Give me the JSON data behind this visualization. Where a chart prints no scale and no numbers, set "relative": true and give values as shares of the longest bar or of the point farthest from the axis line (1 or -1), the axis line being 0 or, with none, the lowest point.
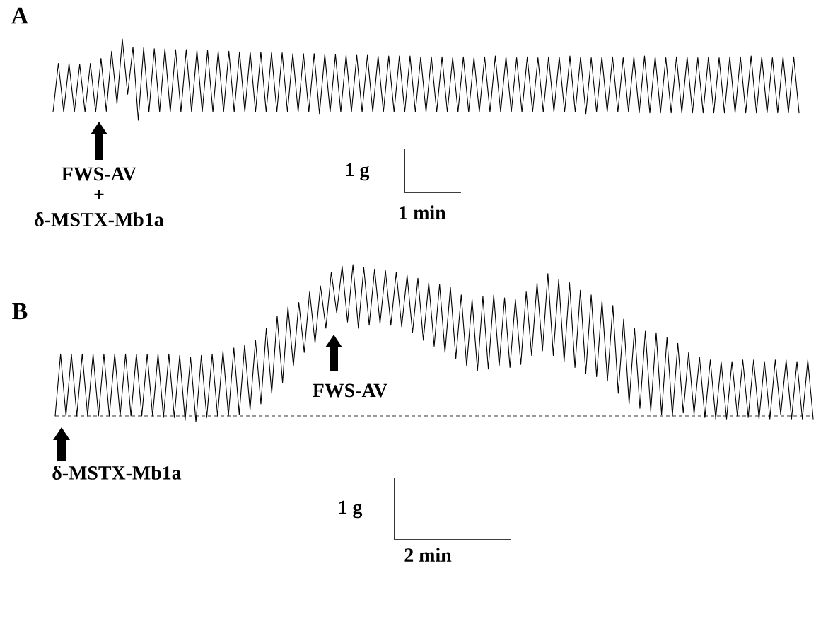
{
  "chart_data": [
    {
      "type": "line",
      "title": "A",
      "relative": true,
      "color": "#000000",
      "categories": [
        null,
        null,
        null,
        null,
        null,
        null,
        null,
        null,
        null,
        null,
        null,
        null,
        null,
        null,
        null,
        null,
        null,
        null,
        null,
        null,
        null,
        null,
        null,
        null,
        null,
        null,
        null,
        null,
        null,
        null,
        null,
        null,
        null,
        null,
        null,
        null,
        null,
        null,
        null,
        null,
        null,
        null,
        null,
        null,
        null,
        null,
        null,
        null,
        null,
        null,
        null,
        null,
        null,
        null,
        null,
        null,
        null,
        null,
        null,
        null,
        null,
        null,
        null,
        null,
        null,
        null,
        null,
        null,
        null,
        null,
        null,
        null,
        null,
        null,
        null,
        null,
        null,
        null,
        null,
        null,
        null,
        null,
        null,
        null,
        null,
        null,
        null,
        null,
        null,
        null,
        null,
        null,
        null,
        null,
        null,
        null,
        null,
        null,
        null,
        null,
        null,
        null,
        null,
        null,
        null,
        null,
        null,
        null,
        null,
        null,
        null,
        null,
        null,
        null,
        null,
        null,
        null,
        null,
        null,
        null,
        null,
        null,
        null,
        null,
        null,
        null,
        null,
        null,
        null,
        null,
        null,
        null,
        null,
        null,
        null,
        null,
        null,
        null,
        null,
        null,
        null
      ],
      "values": [
        0.1,
        0.7,
        0.1,
        0.7,
        0.1,
        0.69,
        0.1,
        0.7,
        0.1,
        0.76,
        0.11,
        0.85,
        0.2,
        1,
        0.32,
        0.9,
        0,
        0.89,
        0.1,
        0.88,
        0.1,
        0.88,
        0.1,
        0.87,
        0.1,
        0.87,
        0.1,
        0.86,
        0.1,
        0.86,
        0.1,
        0.85,
        0.1,
        0.85,
        0.1,
        0.84,
        0.1,
        0.84,
        0.1,
        0.84,
        0.1,
        0.83,
        0.1,
        0.83,
        0.1,
        0.82,
        0.1,
        0.82,
        0.1,
        0.82,
        0.08,
        0.81,
        0.1,
        0.81,
        0.1,
        0.8,
        0.1,
        0.8,
        0.1,
        0.8,
        0.1,
        0.79,
        0.1,
        0.79,
        0.1,
        0.79,
        0.1,
        0.79,
        0.1,
        0.78,
        0.1,
        0.78,
        0.1,
        0.78,
        0.1,
        0.77,
        0.1,
        0.78,
        0.1,
        0.77,
        0.1,
        0.78,
        0.1,
        0.79,
        0.1,
        0.78,
        0.1,
        0.77,
        0.1,
        0.78,
        0.1,
        0.77,
        0.1,
        0.78,
        0.1,
        0.78,
        0.1,
        0.79,
        0.1,
        0.78,
        0.08,
        0.77,
        0.1,
        0.78,
        0.1,
        0.78,
        0.1,
        0.77,
        0.1,
        0.78,
        0.09,
        0.79,
        0.09,
        0.78,
        0.09,
        0.77,
        0.09,
        0.78,
        0.09,
        0.78,
        0.09,
        0.77,
        0.09,
        0.78,
        0.09,
        0.77,
        0.09,
        0.78,
        0.09,
        0.78,
        0.09,
        0.79,
        0.09,
        0.78,
        0.09,
        0.77,
        0.09,
        0.78,
        0.09,
        0.78,
        0.09
      ],
      "annotations": [
        "FWS-AV",
        "+",
        "δ-MSTX-Mb1a",
        "1 g",
        "1 min"
      ]
    },
    {
      "type": "line",
      "title": "B",
      "relative": true,
      "color": "#000000",
      "categories": [
        null,
        null,
        null,
        null,
        null,
        null,
        null,
        null,
        null,
        null,
        null,
        null,
        null,
        null,
        null,
        null,
        null,
        null,
        null,
        null,
        null,
        null,
        null,
        null,
        null,
        null,
        null,
        null,
        null,
        null,
        null,
        null,
        null,
        null,
        null,
        null,
        null,
        null,
        null,
        null,
        null,
        null,
        null,
        null,
        null,
        null,
        null,
        null,
        null,
        null,
        null,
        null,
        null,
        null,
        null,
        null,
        null,
        null,
        null,
        null,
        null,
        null,
        null,
        null,
        null,
        null,
        null,
        null,
        null,
        null,
        null,
        null,
        null,
        null,
        null,
        null,
        null,
        null,
        null,
        null,
        null,
        null,
        null,
        null,
        null,
        null,
        null,
        null,
        null,
        null,
        null,
        null,
        null,
        null,
        null,
        null,
        null,
        null,
        null,
        null,
        null,
        null,
        null,
        null,
        null,
        null,
        null,
        null,
        null,
        null,
        null,
        null,
        null,
        null,
        null,
        null,
        null,
        null,
        null,
        null,
        null,
        null,
        null,
        null,
        null,
        null,
        null,
        null,
        null,
        null,
        null,
        null,
        null,
        null,
        null,
        null,
        null,
        null,
        null,
        null,
        null
      ],
      "values": [
        0,
        0.41,
        0,
        0.41,
        0,
        0.41,
        0,
        0.41,
        0,
        0.41,
        0,
        0.41,
        0,
        0.41,
        0,
        0.41,
        0,
        0.41,
        0,
        0.41,
        -0.01,
        0.41,
        -0.01,
        0.4,
        -0.03,
        0.39,
        -0.04,
        0.4,
        -0.01,
        0.41,
        0,
        0.43,
        0,
        0.45,
        0.01,
        0.47,
        0.04,
        0.5,
        0.08,
        0.58,
        0.15,
        0.66,
        0.22,
        0.72,
        0.33,
        0.75,
        0.42,
        0.82,
        0.48,
        0.86,
        0.58,
        0.95,
        0.68,
        0.99,
        0.62,
        1,
        0.58,
        0.98,
        0.6,
        0.97,
        0.61,
        0.96,
        0.6,
        0.95,
        0.59,
        0.93,
        0.55,
        0.91,
        0.5,
        0.88,
        0.46,
        0.87,
        0.42,
        0.85,
        0.38,
        0.8,
        0.33,
        0.77,
        0.3,
        0.79,
        0.31,
        0.8,
        0.33,
        0.78,
        0.32,
        0.77,
        0.34,
        0.82,
        0.4,
        0.88,
        0.43,
        0.94,
        0.4,
        0.9,
        0.36,
        0.88,
        0.32,
        0.83,
        0.28,
        0.8,
        0.26,
        0.76,
        0.23,
        0.73,
        0.15,
        0.64,
        0.08,
        0.58,
        0.05,
        0.56,
        0.03,
        0.55,
        0.01,
        0.52,
        0,
        0.48,
        0.02,
        0.42,
        0.01,
        0.39,
        -0.01,
        0.37,
        -0.02,
        0.36,
        -0.02,
        0.36,
        0,
        0.37,
        -0.01,
        0.37,
        -0.02,
        0.36,
        -0.02,
        0.37,
        0.01,
        0.37,
        -0.02,
        0.36,
        -0.02,
        0.37,
        -0.02
      ],
      "ref_lines": [
        {
          "axis": "y",
          "value": 0,
          "line_style": "dashed"
        }
      ],
      "annotations": [
        "δ-MSTX-Mb1a",
        "FWS-AV",
        "1 g",
        "2 min"
      ]
    }
  ]
}
